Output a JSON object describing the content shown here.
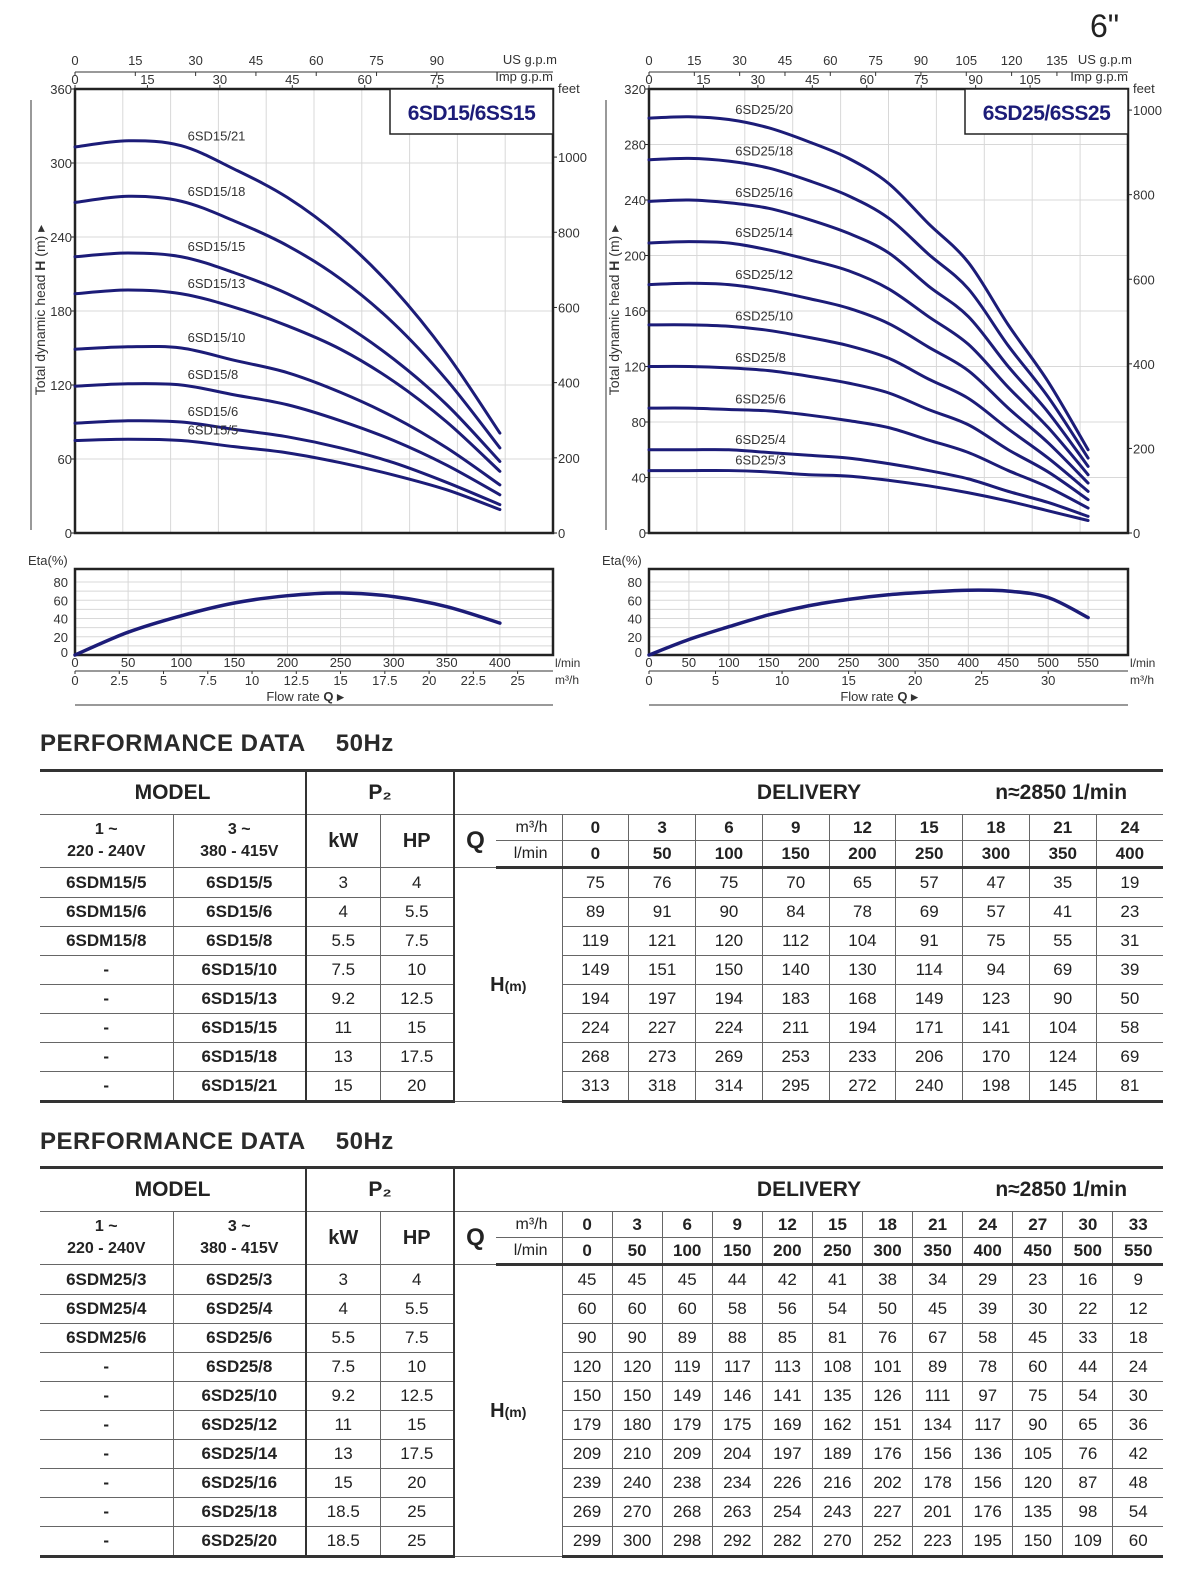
{
  "page_marker": "6\"",
  "charts": [
    {
      "title": "6SD15/6SS15",
      "us_gpm_label": "US g.p.m",
      "imp_gpm_label": "Imp g.p.m",
      "feet_label": "feet",
      "y_label": "Total dynamic head ",
      "y_symbol": "H",
      "y_unit": " (m) ▸",
      "eta_label": "Eta",
      "eta_unit": "(%)",
      "lmin_label": "l/min",
      "m3h_label": "m³/h",
      "flow_label": "Flow  rate  ",
      "flow_symbol": "Q ▸",
      "us_gpm_ticks": [
        0,
        15,
        30,
        45,
        60,
        75,
        90
      ],
      "imp_gpm_ticks": [
        0,
        15,
        30,
        45,
        60,
        75
      ],
      "head_ticks": [
        0,
        60,
        120,
        180,
        240,
        300,
        360
      ],
      "feet_ticks": [
        0,
        200,
        400,
        600,
        800,
        1000
      ],
      "eta_ticks": [
        0,
        20,
        40,
        60,
        80
      ],
      "lmin_ticks": [
        0,
        50,
        100,
        150,
        200,
        250,
        300,
        350,
        400
      ],
      "m3h_ticks": [
        0,
        2.5,
        5,
        7.5,
        10,
        12.5,
        15,
        17.5,
        20,
        22.5,
        25
      ]
    },
    {
      "title": "6SD25/6SS25",
      "us_gpm_label": "US g.p.m",
      "imp_gpm_label": "Imp g.p.m",
      "feet_label": "feet",
      "y_label": "Total dynamic head ",
      "y_symbol": "H",
      "y_unit": " (m) ▸",
      "eta_label": "Eta",
      "eta_unit": "(%)",
      "lmin_label": "l/min",
      "m3h_label": "m³/h",
      "flow_label": "Flow  rate  ",
      "flow_symbol": "Q ▸",
      "us_gpm_ticks": [
        0,
        15,
        30,
        45,
        60,
        75,
        90,
        105,
        120,
        135
      ],
      "imp_gpm_ticks": [
        0,
        15,
        30,
        45,
        60,
        75,
        90,
        105
      ],
      "head_ticks": [
        0,
        40,
        80,
        120,
        160,
        200,
        240,
        280,
        320
      ],
      "feet_ticks": [
        0,
        200,
        400,
        600,
        800,
        1000
      ],
      "eta_ticks": [
        0,
        20,
        40,
        60,
        80
      ],
      "lmin_ticks": [
        0,
        50,
        100,
        150,
        200,
        250,
        300,
        350,
        400,
        450,
        500,
        550
      ],
      "m3h_ticks": [
        0,
        5,
        10,
        15,
        20,
        25,
        30
      ]
    }
  ],
  "chart_data": [
    {
      "type": "line",
      "title": "6SD15/6SS15",
      "xlabel": "Flow rate Q (l/min)",
      "ylabel": "Total dynamic head H (m)",
      "xlim": [
        0,
        450
      ],
      "ylim": [
        0,
        360
      ],
      "grid": true,
      "x": [
        0,
        50,
        100,
        150,
        200,
        250,
        300,
        350,
        400
      ],
      "series": [
        {
          "name": "6SD15/21",
          "values": [
            313,
            318,
            314,
            295,
            272,
            240,
            198,
            145,
            81
          ]
        },
        {
          "name": "6SD15/18",
          "values": [
            268,
            273,
            269,
            253,
            233,
            206,
            170,
            124,
            69
          ]
        },
        {
          "name": "6SD15/15",
          "values": [
            224,
            227,
            224,
            211,
            194,
            171,
            141,
            104,
            58
          ]
        },
        {
          "name": "6SD15/13",
          "values": [
            194,
            197,
            194,
            183,
            168,
            149,
            123,
            90,
            50
          ]
        },
        {
          "name": "6SD15/10",
          "values": [
            149,
            151,
            150,
            140,
            130,
            114,
            94,
            69,
            39
          ]
        },
        {
          "name": "6SD15/8",
          "values": [
            119,
            121,
            120,
            112,
            104,
            91,
            75,
            55,
            31
          ]
        },
        {
          "name": "6SD15/6",
          "values": [
            89,
            91,
            90,
            84,
            78,
            69,
            57,
            41,
            23
          ]
        },
        {
          "name": "6SD15/5",
          "values": [
            75,
            76,
            75,
            70,
            65,
            57,
            47,
            35,
            19
          ]
        }
      ],
      "efficiency": {
        "ylabel": "Eta(%)",
        "ylim": [
          0,
          80
        ],
        "x": [
          0,
          50,
          100,
          150,
          200,
          250,
          300,
          350,
          400
        ],
        "values": [
          0,
          25,
          43,
          57,
          65,
          68,
          64,
          53,
          35
        ]
      }
    },
    {
      "type": "line",
      "title": "6SD25/6SS25",
      "xlabel": "Flow rate Q (l/min)",
      "ylabel": "Total dynamic head H (m)",
      "xlim": [
        0,
        600
      ],
      "ylim": [
        0,
        320
      ],
      "grid": true,
      "x": [
        0,
        50,
        100,
        150,
        200,
        250,
        300,
        350,
        400,
        450,
        500,
        550
      ],
      "series": [
        {
          "name": "6SD25/20",
          "values": [
            299,
            300,
            298,
            292,
            282,
            270,
            252,
            223,
            195,
            150,
            109,
            60
          ]
        },
        {
          "name": "6SD25/18",
          "values": [
            269,
            270,
            268,
            263,
            254,
            243,
            227,
            201,
            176,
            135,
            98,
            54
          ]
        },
        {
          "name": "6SD25/16",
          "values": [
            239,
            240,
            238,
            234,
            226,
            216,
            202,
            178,
            156,
            120,
            87,
            48
          ]
        },
        {
          "name": "6SD25/14",
          "values": [
            209,
            210,
            209,
            204,
            197,
            189,
            176,
            156,
            136,
            105,
            76,
            42
          ]
        },
        {
          "name": "6SD25/12",
          "values": [
            179,
            180,
            179,
            175,
            169,
            162,
            151,
            134,
            117,
            90,
            65,
            36
          ]
        },
        {
          "name": "6SD25/10",
          "values": [
            150,
            150,
            149,
            146,
            141,
            135,
            126,
            111,
            97,
            75,
            54,
            30
          ]
        },
        {
          "name": "6SD25/8",
          "values": [
            120,
            120,
            119,
            117,
            113,
            108,
            101,
            89,
            78,
            60,
            44,
            24
          ]
        },
        {
          "name": "6SD25/6",
          "values": [
            90,
            90,
            89,
            88,
            85,
            81,
            76,
            67,
            58,
            45,
            33,
            18
          ]
        },
        {
          "name": "6SD25/4",
          "values": [
            60,
            60,
            60,
            58,
            56,
            54,
            50,
            45,
            39,
            30,
            22,
            12
          ]
        },
        {
          "name": "6SD25/3",
          "values": [
            45,
            45,
            45,
            44,
            42,
            41,
            38,
            34,
            29,
            23,
            16,
            9
          ]
        }
      ],
      "efficiency": {
        "ylabel": "Eta(%)",
        "ylim": [
          0,
          80
        ],
        "x": [
          0,
          50,
          100,
          150,
          200,
          250,
          300,
          350,
          400,
          450,
          500,
          550
        ],
        "values": [
          0,
          17,
          31,
          44,
          54,
          61,
          66,
          69,
          71,
          70,
          63,
          41
        ]
      }
    }
  ],
  "tables": [
    {
      "title": "PERFORMANCE  DATA",
      "freq": "50Hz",
      "model_label": "MODEL",
      "p2_label": "P₂",
      "delivery_label": "DELIVERY",
      "speed": "n≈2850 1/min",
      "single_phase": "1 ~",
      "single_voltage": "220 - 240V",
      "three_phase": "3 ~",
      "three_voltage": "380 - 415V",
      "kw_label": "kW",
      "hp_label": "HP",
      "q_label": "Q",
      "m3h_label": "m³/h",
      "lmin_label": "l/min",
      "h_label": "H",
      "h_unit": "(m)",
      "q_m3h": [
        "0",
        "3",
        "6",
        "9",
        "12",
        "15",
        "18",
        "21",
        "24"
      ],
      "q_lmin": [
        "0",
        "50",
        "100",
        "150",
        "200",
        "250",
        "300",
        "350",
        "400"
      ],
      "rows": [
        {
          "single": "6SDM15/5",
          "three": "6SD15/5",
          "kw": "3",
          "hp": "4",
          "h": [
            "75",
            "76",
            "75",
            "70",
            "65",
            "57",
            "47",
            "35",
            "19"
          ]
        },
        {
          "single": "6SDM15/6",
          "three": "6SD15/6",
          "kw": "4",
          "hp": "5.5",
          "h": [
            "89",
            "91",
            "90",
            "84",
            "78",
            "69",
            "57",
            "41",
            "23"
          ]
        },
        {
          "single": "6SDM15/8",
          "three": "6SD15/8",
          "kw": "5.5",
          "hp": "7.5",
          "h": [
            "119",
            "121",
            "120",
            "112",
            "104",
            "91",
            "75",
            "55",
            "31"
          ]
        },
        {
          "single": "-",
          "three": "6SD15/10",
          "kw": "7.5",
          "hp": "10",
          "h": [
            "149",
            "151",
            "150",
            "140",
            "130",
            "114",
            "94",
            "69",
            "39"
          ]
        },
        {
          "single": "-",
          "three": "6SD15/13",
          "kw": "9.2",
          "hp": "12.5",
          "h": [
            "194",
            "197",
            "194",
            "183",
            "168",
            "149",
            "123",
            "90",
            "50"
          ]
        },
        {
          "single": "-",
          "three": "6SD15/15",
          "kw": "11",
          "hp": "15",
          "h": [
            "224",
            "227",
            "224",
            "211",
            "194",
            "171",
            "141",
            "104",
            "58"
          ]
        },
        {
          "single": "-",
          "three": "6SD15/18",
          "kw": "13",
          "hp": "17.5",
          "h": [
            "268",
            "273",
            "269",
            "253",
            "233",
            "206",
            "170",
            "124",
            "69"
          ]
        },
        {
          "single": "-",
          "three": "6SD15/21",
          "kw": "15",
          "hp": "20",
          "h": [
            "313",
            "318",
            "314",
            "295",
            "272",
            "240",
            "198",
            "145",
            "81"
          ]
        }
      ]
    },
    {
      "title": "PERFORMANCE  DATA",
      "freq": "50Hz",
      "model_label": "MODEL",
      "p2_label": "P₂",
      "delivery_label": "DELIVERY",
      "speed": "n≈2850 1/min",
      "single_phase": "1 ~",
      "single_voltage": "220 - 240V",
      "three_phase": "3 ~",
      "three_voltage": "380 - 415V",
      "kw_label": "kW",
      "hp_label": "HP",
      "q_label": "Q",
      "m3h_label": "m³/h",
      "lmin_label": "l/min",
      "h_label": "H",
      "h_unit": "(m)",
      "q_m3h": [
        "0",
        "3",
        "6",
        "9",
        "12",
        "15",
        "18",
        "21",
        "24",
        "27",
        "30",
        "33"
      ],
      "q_lmin": [
        "0",
        "50",
        "100",
        "150",
        "200",
        "250",
        "300",
        "350",
        "400",
        "450",
        "500",
        "550"
      ],
      "rows": [
        {
          "single": "6SDM25/3",
          "three": "6SD25/3",
          "kw": "3",
          "hp": "4",
          "h": [
            "45",
            "45",
            "45",
            "44",
            "42",
            "41",
            "38",
            "34",
            "29",
            "23",
            "16",
            "9"
          ]
        },
        {
          "single": "6SDM25/4",
          "three": "6SD25/4",
          "kw": "4",
          "hp": "5.5",
          "h": [
            "60",
            "60",
            "60",
            "58",
            "56",
            "54",
            "50",
            "45",
            "39",
            "30",
            "22",
            "12"
          ]
        },
        {
          "single": "6SDM25/6",
          "three": "6SD25/6",
          "kw": "5.5",
          "hp": "7.5",
          "h": [
            "90",
            "90",
            "89",
            "88",
            "85",
            "81",
            "76",
            "67",
            "58",
            "45",
            "33",
            "18"
          ]
        },
        {
          "single": "-",
          "three": "6SD25/8",
          "kw": "7.5",
          "hp": "10",
          "h": [
            "120",
            "120",
            "119",
            "117",
            "113",
            "108",
            "101",
            "89",
            "78",
            "60",
            "44",
            "24"
          ]
        },
        {
          "single": "-",
          "three": "6SD25/10",
          "kw": "9.2",
          "hp": "12.5",
          "h": [
            "150",
            "150",
            "149",
            "146",
            "141",
            "135",
            "126",
            "111",
            "97",
            "75",
            "54",
            "30"
          ]
        },
        {
          "single": "-",
          "three": "6SD25/12",
          "kw": "11",
          "hp": "15",
          "h": [
            "179",
            "180",
            "179",
            "175",
            "169",
            "162",
            "151",
            "134",
            "117",
            "90",
            "65",
            "36"
          ]
        },
        {
          "single": "-",
          "three": "6SD25/14",
          "kw": "13",
          "hp": "17.5",
          "h": [
            "209",
            "210",
            "209",
            "204",
            "197",
            "189",
            "176",
            "156",
            "136",
            "105",
            "76",
            "42"
          ]
        },
        {
          "single": "-",
          "three": "6SD25/16",
          "kw": "15",
          "hp": "20",
          "h": [
            "239",
            "240",
            "238",
            "234",
            "226",
            "216",
            "202",
            "178",
            "156",
            "120",
            "87",
            "48"
          ]
        },
        {
          "single": "-",
          "three": "6SD25/18",
          "kw": "18.5",
          "hp": "25",
          "h": [
            "269",
            "270",
            "268",
            "263",
            "254",
            "243",
            "227",
            "201",
            "176",
            "135",
            "98",
            "54"
          ]
        },
        {
          "single": "-",
          "three": "6SD25/20",
          "kw": "18.5",
          "hp": "25",
          "h": [
            "299",
            "300",
            "298",
            "292",
            "282",
            "270",
            "252",
            "223",
            "195",
            "150",
            "109",
            "60"
          ]
        }
      ]
    }
  ],
  "colors": {
    "curve": "#1c1c78",
    "title": "#1c1c78",
    "grid": "#d8d8d8",
    "frame": "#222222"
  }
}
